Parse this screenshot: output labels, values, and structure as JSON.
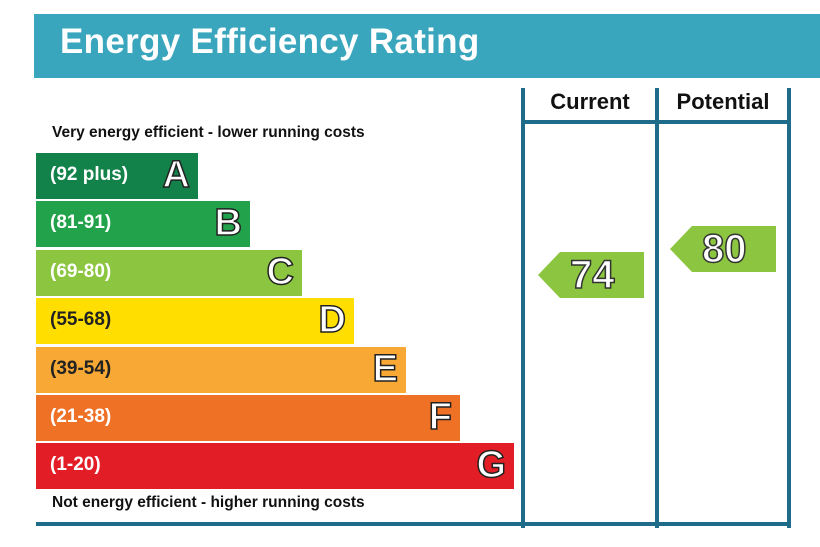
{
  "title": "Energy Efficiency Rating",
  "columns": {
    "current": "Current",
    "potential": "Potential"
  },
  "notes": {
    "top": "Very energy efficient - lower running costs",
    "bottom": "Not energy efficient - higher running costs"
  },
  "chart_data": {
    "type": "bar",
    "categories": [
      "A",
      "B",
      "C",
      "D",
      "E",
      "F",
      "G"
    ],
    "bands": [
      {
        "letter": "A",
        "range": "(92 plus)",
        "color": "#13824a"
      },
      {
        "letter": "B",
        "range": "(81-91)",
        "color": "#22a24b"
      },
      {
        "letter": "C",
        "range": "(69-80)",
        "color": "#8cc53f"
      },
      {
        "letter": "D",
        "range": "(55-68)",
        "color": "#ffde00"
      },
      {
        "letter": "E",
        "range": "(39-54)",
        "color": "#f8a935"
      },
      {
        "letter": "F",
        "range": "(21-38)",
        "color": "#ef7125"
      },
      {
        "letter": "G",
        "range": "(1-20)",
        "color": "#e31d25"
      }
    ],
    "current": {
      "value": 74,
      "band": "C",
      "color": "#8cc53f"
    },
    "potential": {
      "value": 80,
      "band": "C",
      "color": "#8cc53f"
    }
  }
}
